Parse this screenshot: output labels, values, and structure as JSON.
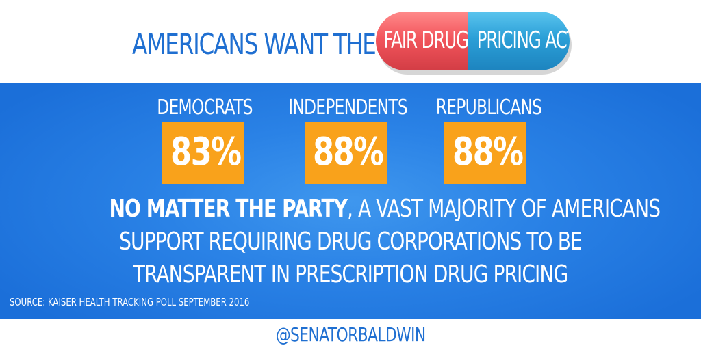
{
  "header": {
    "headline": "AMERICANS WANT THE",
    "pill": {
      "left_text": "FAIR DRUG",
      "right_text": "PRICING ACT",
      "left_color": "#f2555c",
      "right_color": "#2b9fd7"
    }
  },
  "stats": [
    {
      "label": "DEMOCRATS",
      "value": "83%"
    },
    {
      "label": "INDEPENDENTS",
      "value": "88%"
    },
    {
      "label": "REPUBLICANS",
      "value": "88%"
    }
  ],
  "message": {
    "bold_lead": "NO MATTER THE PARTY",
    "line1_rest": ", A VAST MAJORITY OF AMERICANS",
    "line2": "SUPPORT REQUIRING DRUG CORPORATIONS TO BE",
    "line3": "TRANSPARENT IN PRESCRIPTION DRUG PRICING"
  },
  "source": "SOURCE: KAISER HEALTH TRACKING POLL SEPTEMBER 2016",
  "handle": "@SENATORBALDWIN",
  "colors": {
    "brand_blue": "#1f6fd1",
    "panel_blue": "#2a82e6",
    "stat_box_orange": "#f9a21b"
  }
}
